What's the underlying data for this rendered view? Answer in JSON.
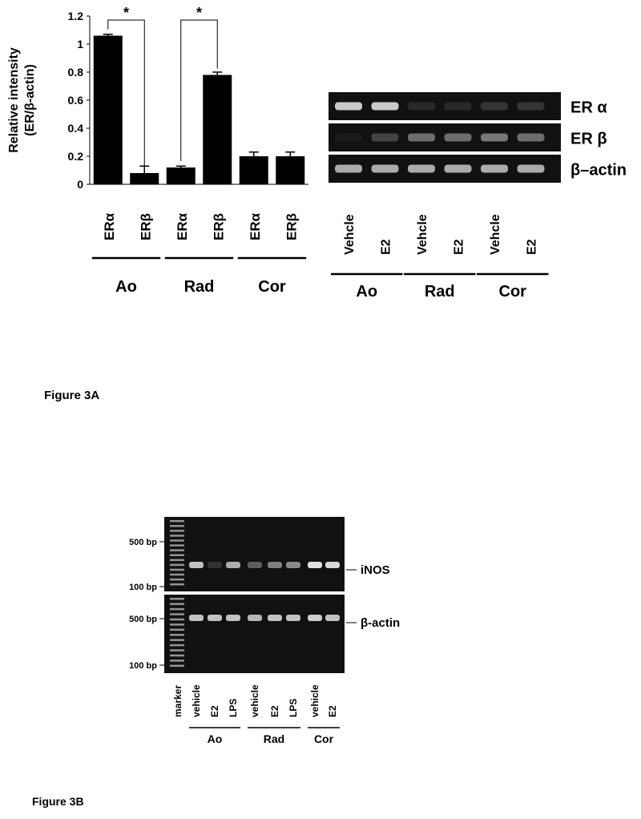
{
  "chart_data": {
    "type": "bar",
    "y_label_lines": [
      "Relative intensity",
      "(ER/β-actin)"
    ],
    "categories": [
      "ERα",
      "ERβ",
      "ERα",
      "ERβ",
      "ERα",
      "ERβ"
    ],
    "groups": [
      "Ao",
      "Rad",
      "Cor"
    ],
    "values": [
      1.06,
      0.08,
      0.12,
      0.78,
      0.2,
      0.2
    ],
    "errors": [
      0.01,
      0.05,
      0.01,
      0.02,
      0.03,
      0.03
    ],
    "color": "#000000",
    "ylim": [
      0,
      1.2
    ],
    "yticks": [
      0,
      0.2,
      0.4,
      0.6,
      0.8,
      1,
      1.2
    ],
    "annotations": [
      "*",
      "*"
    ]
  },
  "gel_a": {
    "rows": [
      "ER α",
      "ER β",
      "β–actin"
    ],
    "lanes": [
      "Vehcle",
      "E2",
      "Vehcle",
      "E2",
      "Vehcle",
      "E2"
    ],
    "groups": [
      "Ao",
      "Rad",
      "Cor"
    ]
  },
  "figure_a_label": "Figure 3A",
  "gel_b": {
    "marker_labels": [
      "500 bp",
      "100 bp",
      "500 bp",
      "100 bp"
    ],
    "rows": [
      "iNOS",
      "β-actin"
    ],
    "lanes": [
      "marker",
      "vehicle",
      "E2",
      "LPS",
      "vehicle",
      "E2",
      "LPS",
      "vehicle",
      "E2"
    ],
    "groups": [
      "Ao",
      "Rad",
      "Cor"
    ]
  },
  "figure_b_label": "Figure 3B"
}
